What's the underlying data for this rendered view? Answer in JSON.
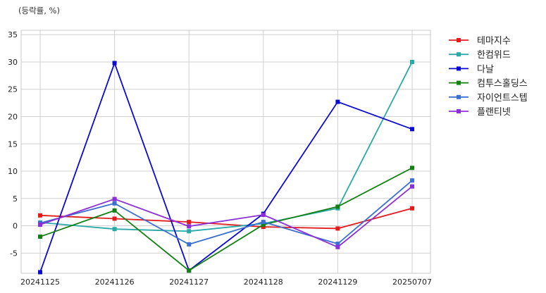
{
  "unit_label": "(등락률, %)",
  "chart_data": {
    "type": "line",
    "title": "",
    "xlabel": "",
    "ylabel": "(등락률, %)",
    "categories": [
      "20241125",
      "20241126",
      "20241127",
      "20241128",
      "20241129",
      "20250707"
    ],
    "ylim": [
      -8.7,
      35.8
    ],
    "yticks": [
      -5,
      0,
      5,
      10,
      15,
      20,
      25,
      30,
      35
    ],
    "grid": true,
    "legend_position": "right",
    "series": [
      {
        "name": "테마지수",
        "color": "#e41a1c",
        "values": [
          1.9,
          1.3,
          0.7,
          -0.2,
          -0.5,
          3.2
        ]
      },
      {
        "name": "한컴위드",
        "color": "#2aa9a9",
        "values": [
          0.6,
          -0.6,
          -1.0,
          0.4,
          3.2,
          30.0
        ]
      },
      {
        "name": "다날",
        "color": "#0a0ad1",
        "values": [
          -8.5,
          29.8,
          -8.2,
          2.2,
          22.7,
          17.7
        ]
      },
      {
        "name": "컴투스홀딩스",
        "color": "#138013",
        "values": [
          -2.0,
          2.8,
          -8.2,
          0.2,
          3.5,
          10.6
        ]
      },
      {
        "name": "자이언트스텝",
        "color": "#3b6fd1",
        "values": [
          0.5,
          4.1,
          -3.4,
          0.7,
          -3.3,
          8.3
        ]
      },
      {
        "name": "플랜티넷",
        "color": "#8b2fd6",
        "values": [
          0.2,
          4.9,
          -0.1,
          2.0,
          -3.9,
          7.2
        ]
      }
    ]
  }
}
